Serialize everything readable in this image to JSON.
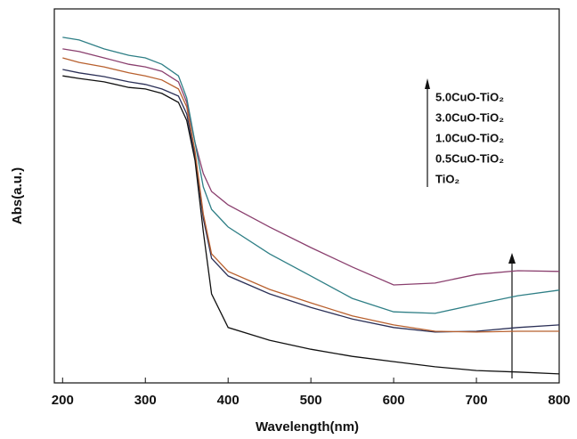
{
  "chart_data": {
    "type": "line",
    "x_label": "Wavelength(nm)",
    "y_label": "Abs(a.u.)",
    "x": [
      200,
      220,
      250,
      280,
      300,
      320,
      340,
      350,
      360,
      370,
      380,
      400,
      450,
      500,
      550,
      600,
      650,
      700,
      750,
      800
    ],
    "series": [
      {
        "name": "5.0CuO-TiO₂",
        "color": "#8a3f6e",
        "values": [
          0.893,
          0.886,
          0.869,
          0.852,
          0.845,
          0.833,
          0.805,
          0.75,
          0.643,
          0.56,
          0.512,
          0.476,
          0.417,
          0.362,
          0.31,
          0.262,
          0.267,
          0.29,
          0.3,
          0.298
        ]
      },
      {
        "name": "3.0CuO-TiO₂",
        "color": "#2f7f86",
        "values": [
          0.924,
          0.917,
          0.893,
          0.876,
          0.869,
          0.852,
          0.821,
          0.762,
          0.643,
          0.524,
          0.464,
          0.417,
          0.345,
          0.286,
          0.226,
          0.19,
          0.186,
          0.21,
          0.233,
          0.248
        ]
      },
      {
        "name": "1.0CuO-TiO₂",
        "color": "#2b3057",
        "values": [
          0.838,
          0.829,
          0.819,
          0.805,
          0.798,
          0.786,
          0.767,
          0.719,
          0.607,
          0.44,
          0.333,
          0.286,
          0.238,
          0.202,
          0.171,
          0.148,
          0.136,
          0.138,
          0.148,
          0.155
        ]
      },
      {
        "name": "0.5CuO-TiO₂",
        "color": "#b8602e",
        "values": [
          0.869,
          0.857,
          0.845,
          0.829,
          0.821,
          0.81,
          0.786,
          0.738,
          0.619,
          0.452,
          0.345,
          0.298,
          0.25,
          0.214,
          0.179,
          0.155,
          0.138,
          0.136,
          0.138,
          0.138
        ]
      },
      {
        "name": "TiO₂",
        "color": "#111111",
        "values": [
          0.821,
          0.814,
          0.805,
          0.79,
          0.786,
          0.774,
          0.75,
          0.702,
          0.595,
          0.405,
          0.238,
          0.148,
          0.114,
          0.09,
          0.071,
          0.057,
          0.043,
          0.033,
          0.029,
          0.024
        ]
      }
    ],
    "xlim": [
      190,
      800
    ],
    "xticks": [
      200,
      300,
      400,
      500,
      600,
      700,
      800
    ],
    "ylim": [
      0,
      1
    ]
  }
}
